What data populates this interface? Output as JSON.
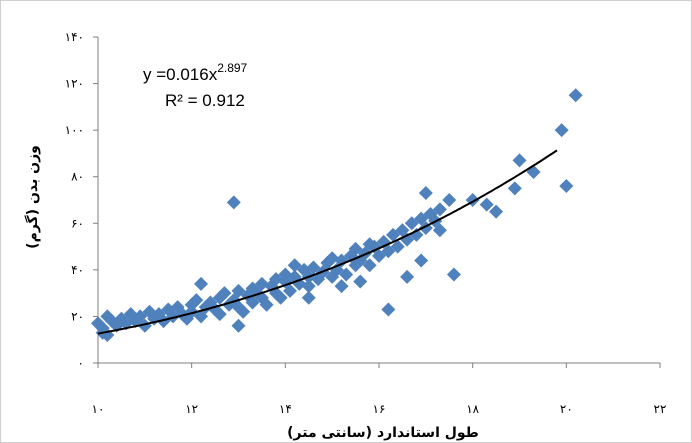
{
  "chart_data": {
    "type": "scatter",
    "xlabel": "طول استاندارد (سانتی متر)",
    "ylabel": "وزن بدن (گرم)",
    "xlim": [
      10,
      22
    ],
    "ylim": [
      0,
      140
    ],
    "x_ticks": [
      10,
      12,
      14,
      16,
      18,
      20,
      22
    ],
    "y_ticks": [
      0,
      20,
      40,
      60,
      80,
      100,
      120,
      140
    ],
    "x_tick_labels": [
      "۱۰",
      "۱۲",
      "۱۴",
      "۱۶",
      "۱۸",
      "۲۰",
      "۲۲"
    ],
    "y_tick_labels": [
      "۰",
      "۲۰",
      "۴۰",
      "۶۰",
      "۸۰",
      "۱۰۰",
      "۱۲۰",
      "۱۴۰"
    ],
    "equation": {
      "prefix": "y =0.016x",
      "exponent": "2.897",
      "r2": "R² = 0.912"
    },
    "trendline": {
      "a": 0.016,
      "b": 2.897
    },
    "marker_color": "#4f81bd",
    "line_color": "#000000",
    "grid": false,
    "series": [
      {
        "points": [
          [
            10.0,
            17
          ],
          [
            10.1,
            15
          ],
          [
            10.2,
            20
          ],
          [
            10.3,
            18
          ],
          [
            10.4,
            16
          ],
          [
            10.1,
            13
          ],
          [
            10.2,
            12
          ],
          [
            10.5,
            19
          ],
          [
            10.6,
            17
          ],
          [
            10.7,
            21
          ],
          [
            10.8,
            18
          ],
          [
            10.9,
            20
          ],
          [
            11.0,
            16
          ],
          [
            11.1,
            22
          ],
          [
            11.2,
            19
          ],
          [
            11.3,
            21
          ],
          [
            11.4,
            18
          ],
          [
            11.5,
            23
          ],
          [
            11.6,
            20
          ],
          [
            11.7,
            24
          ],
          [
            11.8,
            21
          ],
          [
            11.9,
            19
          ],
          [
            12.0,
            25
          ],
          [
            12.0,
            22
          ],
          [
            12.1,
            27
          ],
          [
            12.2,
            20
          ],
          [
            12.3,
            24
          ],
          [
            12.4,
            26
          ],
          [
            12.5,
            23
          ],
          [
            12.6,
            28
          ],
          [
            12.6,
            21
          ],
          [
            12.7,
            30
          ],
          [
            12.8,
            25
          ],
          [
            12.9,
            27
          ],
          [
            13.0,
            24
          ],
          [
            13.0,
            31
          ],
          [
            13.1,
            22
          ],
          [
            13.2,
            29
          ],
          [
            13.3,
            32
          ],
          [
            13.3,
            26
          ],
          [
            13.4,
            30
          ],
          [
            13.5,
            28
          ],
          [
            13.5,
            34
          ],
          [
            13.6,
            25
          ],
          [
            13.7,
            33
          ],
          [
            13.8,
            30
          ],
          [
            13.8,
            36
          ],
          [
            13.9,
            28
          ],
          [
            14.0,
            35
          ],
          [
            14.0,
            38
          ],
          [
            14.1,
            31
          ],
          [
            14.2,
            37
          ],
          [
            14.3,
            34
          ],
          [
            14.4,
            40
          ],
          [
            14.5,
            33
          ],
          [
            14.5,
            37
          ],
          [
            14.6,
            41
          ],
          [
            14.7,
            36
          ],
          [
            14.8,
            39
          ],
          [
            14.9,
            43
          ],
          [
            15.0,
            37
          ],
          [
            15.0,
            45
          ],
          [
            15.1,
            40
          ],
          [
            15.2,
            44
          ],
          [
            15.3,
            38
          ],
          [
            15.4,
            46
          ],
          [
            15.5,
            42
          ],
          [
            15.5,
            49
          ],
          [
            15.6,
            44
          ],
          [
            15.7,
            47
          ],
          [
            15.8,
            42
          ],
          [
            15.9,
            50
          ],
          [
            16.0,
            46
          ],
          [
            16.1,
            52
          ],
          [
            16.2,
            48
          ],
          [
            16.3,
            55
          ],
          [
            16.4,
            50
          ],
          [
            16.5,
            57
          ],
          [
            16.6,
            53
          ],
          [
            16.7,
            60
          ],
          [
            16.8,
            55
          ],
          [
            16.9,
            62
          ],
          [
            17.0,
            58
          ],
          [
            17.1,
            64
          ],
          [
            17.2,
            61
          ],
          [
            17.3,
            57
          ],
          [
            13.0,
            16
          ],
          [
            12.9,
            69
          ],
          [
            14.5,
            28
          ],
          [
            15.2,
            33
          ],
          [
            15.6,
            35
          ],
          [
            16.2,
            23
          ],
          [
            16.6,
            37
          ],
          [
            16.9,
            44
          ],
          [
            17.6,
            38
          ],
          [
            17.5,
            70
          ],
          [
            17.3,
            66
          ],
          [
            17.0,
            73
          ],
          [
            18.0,
            70
          ],
          [
            18.3,
            68
          ],
          [
            18.5,
            65
          ],
          [
            18.9,
            75
          ],
          [
            19.0,
            87
          ],
          [
            19.3,
            82
          ],
          [
            19.9,
            100
          ],
          [
            20.2,
            115
          ],
          [
            20.0,
            76
          ],
          [
            12.2,
            34
          ],
          [
            14.2,
            42
          ],
          [
            15.8,
            51
          ]
        ]
      }
    ]
  }
}
